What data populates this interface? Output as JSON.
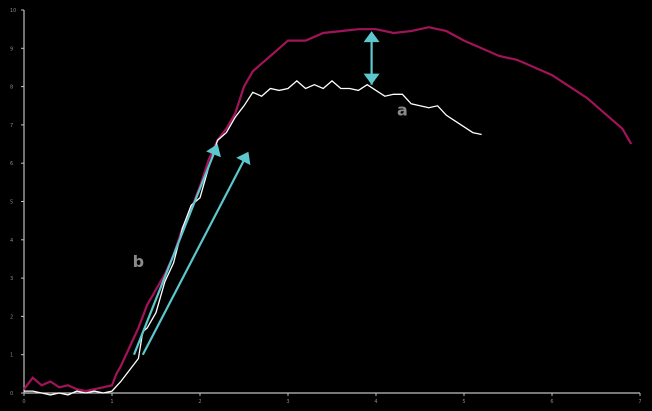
{
  "chart_data": {
    "type": "line",
    "title": "",
    "xlabel": "",
    "ylabel": "",
    "xlim": [
      0,
      7
    ],
    "ylim": [
      0,
      10
    ],
    "x_ticks": [
      "0",
      "1",
      "2",
      "3",
      "4",
      "5",
      "6",
      "7"
    ],
    "y_ticks": [
      "0",
      "1",
      "2",
      "3",
      "4",
      "5",
      "6",
      "7",
      "8",
      "9",
      "10"
    ],
    "grid": false,
    "legend": "none",
    "colors": {
      "background": "#000000",
      "axis": "#bfbfbf",
      "series_a": "#ffffff",
      "series_b": "#a3135a",
      "annotation_arrow": "#5cc7cc",
      "annotation_text": "#8a8a8a"
    },
    "series": [
      {
        "key": "a",
        "x": [
          0.0,
          0.1,
          0.2,
          0.3,
          0.4,
          0.5,
          0.6,
          0.7,
          0.8,
          0.9,
          1.0,
          1.1,
          1.2,
          1.3,
          1.35,
          1.4,
          1.5,
          1.6,
          1.7,
          1.8,
          1.9,
          2.0,
          2.1,
          2.2,
          2.3,
          2.4,
          2.5,
          2.6,
          2.7,
          2.8,
          2.9,
          3.0,
          3.1,
          3.2,
          3.3,
          3.4,
          3.5,
          3.6,
          3.7,
          3.8,
          3.9,
          4.0,
          4.1,
          4.2,
          4.3,
          4.4,
          4.5,
          4.6,
          4.7,
          4.8,
          4.9,
          5.0,
          5.1,
          5.2
        ],
        "y": [
          0.05,
          0.05,
          0.0,
          -0.05,
          0.0,
          -0.05,
          0.05,
          0.0,
          0.05,
          0.0,
          0.05,
          0.3,
          0.6,
          0.9,
          1.6,
          1.7,
          2.1,
          2.9,
          3.4,
          4.3,
          4.9,
          5.1,
          5.9,
          6.6,
          6.8,
          7.2,
          7.5,
          7.85,
          7.75,
          7.95,
          7.9,
          7.95,
          8.15,
          7.95,
          8.05,
          7.95,
          8.15,
          7.95,
          7.95,
          7.9,
          8.05,
          7.9,
          7.75,
          7.8,
          7.8,
          7.55,
          7.5,
          7.45,
          7.5,
          7.25,
          7.1,
          6.95,
          6.8,
          6.75
        ]
      },
      {
        "key": "b",
        "x": [
          0.0,
          0.1,
          0.2,
          0.3,
          0.4,
          0.5,
          0.6,
          0.7,
          0.8,
          0.9,
          1.0,
          1.05,
          1.1,
          1.2,
          1.3,
          1.4,
          1.5,
          1.6,
          1.7,
          1.8,
          1.9,
          2.0,
          2.1,
          2.2,
          2.3,
          2.4,
          2.5,
          2.6,
          2.7,
          2.8,
          2.9,
          3.0,
          3.2,
          3.4,
          3.6,
          3.8,
          4.0,
          4.2,
          4.4,
          4.6,
          4.8,
          5.0,
          5.2,
          5.4,
          5.6,
          5.8,
          6.0,
          6.2,
          6.4,
          6.6,
          6.8,
          6.9
        ],
        "y": [
          0.1,
          0.4,
          0.2,
          0.3,
          0.15,
          0.2,
          0.1,
          0.05,
          0.1,
          0.15,
          0.2,
          0.5,
          0.7,
          1.2,
          1.7,
          2.3,
          2.7,
          3.1,
          3.6,
          4.3,
          4.8,
          5.4,
          6.1,
          6.6,
          6.9,
          7.3,
          8.0,
          8.4,
          8.6,
          8.8,
          9.0,
          9.2,
          9.2,
          9.4,
          9.45,
          9.5,
          9.5,
          9.4,
          9.45,
          9.55,
          9.45,
          9.2,
          9.0,
          8.8,
          8.7,
          8.5,
          8.3,
          8.0,
          7.7,
          7.3,
          6.9,
          6.5
        ]
      }
    ],
    "annotations": [
      {
        "text": "a",
        "x": 4.3,
        "y": 7.4
      },
      {
        "text": "b",
        "x": 1.3,
        "y": 3.45
      }
    ],
    "arrows": [
      {
        "from": [
          3.95,
          8.05
        ],
        "to": [
          3.95,
          9.45
        ],
        "double": true
      },
      {
        "from": [
          1.25,
          1.0
        ],
        "to": [
          2.2,
          6.5
        ],
        "double": false
      },
      {
        "from": [
          1.35,
          1.0
        ],
        "to": [
          2.55,
          6.3
        ],
        "double": false
      }
    ]
  }
}
